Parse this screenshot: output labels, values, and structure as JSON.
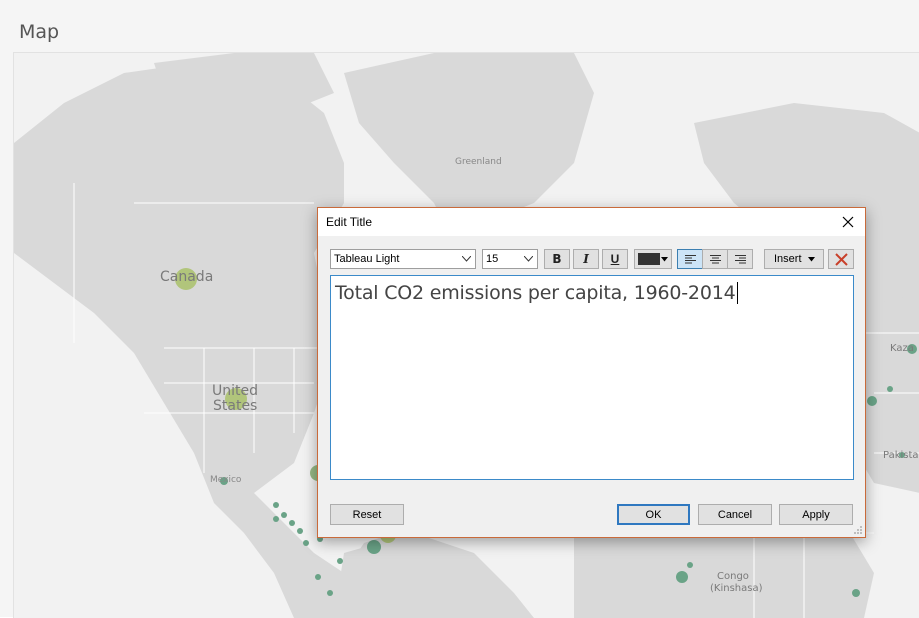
{
  "sheet": {
    "title": "Map"
  },
  "map": {
    "labels": {
      "greenland": "Greenland",
      "canada": "Canada",
      "us_line1": "United",
      "us_line2": "States",
      "mexico": "Mexico",
      "congo_line1": "Congo",
      "congo_line2": "(Kinshasa)",
      "kaza": "Kaza",
      "pakistan": "Pakista"
    },
    "colors": {
      "land": "#d9d9d9",
      "water": "#f2f2f2",
      "mark_large": "#a9c16a",
      "mark_small": "#6aa387"
    }
  },
  "dialog": {
    "title": "Edit Title",
    "toolbar": {
      "font_family": "Tableau Light",
      "font_size": "15",
      "bold_label": "B",
      "italic_label": "I",
      "underline_label": "U",
      "text_color": "#333333",
      "insert_label": "Insert"
    },
    "editor_text": "Total CO2 emissions per capita, 1960-2014",
    "buttons": {
      "reset": "Reset",
      "ok": "OK",
      "cancel": "Cancel",
      "apply": "Apply"
    }
  }
}
